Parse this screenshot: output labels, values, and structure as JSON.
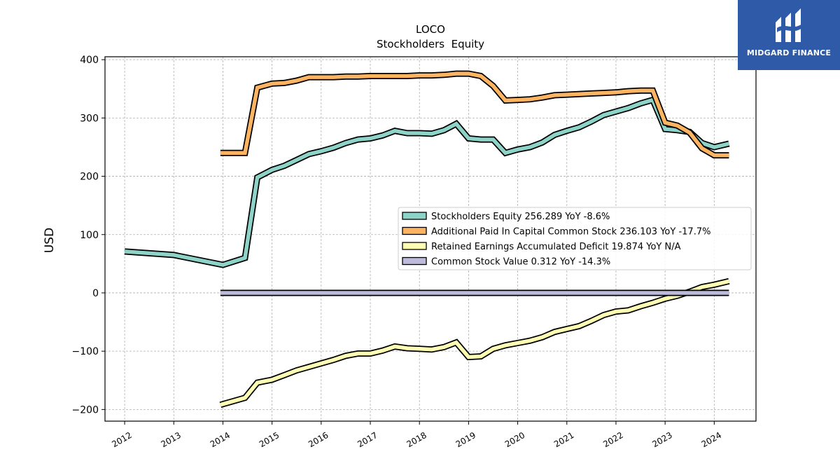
{
  "chart_data": {
    "type": "line",
    "title": "LOCO",
    "subtitle": "Stockholders  Equity",
    "ylabel": "USD",
    "xlabel": "",
    "ylim": [
      -220,
      405
    ],
    "xlim": [
      2011.6,
      2024.85
    ],
    "yticks": [
      -200,
      -100,
      0,
      100,
      200,
      300,
      400
    ],
    "xticks": [
      2012,
      2013,
      2014,
      2015,
      2016,
      2017,
      2018,
      2019,
      2020,
      2021,
      2022,
      2023,
      2024
    ],
    "grid": true,
    "legend_position": "center-right",
    "series": [
      {
        "name": "Stockholders Equity",
        "legend_label": "Stockholders Equity  256.289 YoY -8.6%",
        "color": "#8dd3c7",
        "points": [
          [
            2012.0,
            71
          ],
          [
            2013.0,
            65
          ],
          [
            2014.0,
            48
          ],
          [
            2014.45,
            60
          ],
          [
            2014.7,
            198
          ],
          [
            2015.0,
            211
          ],
          [
            2015.25,
            218
          ],
          [
            2015.5,
            228
          ],
          [
            2015.75,
            238
          ],
          [
            2016.0,
            243
          ],
          [
            2016.25,
            249
          ],
          [
            2016.5,
            257
          ],
          [
            2016.75,
            263
          ],
          [
            2017.0,
            265
          ],
          [
            2017.25,
            270
          ],
          [
            2017.5,
            278
          ],
          [
            2017.75,
            274
          ],
          [
            2018.0,
            274
          ],
          [
            2018.25,
            273
          ],
          [
            2018.5,
            279
          ],
          [
            2018.75,
            290
          ],
          [
            2019.0,
            265
          ],
          [
            2019.25,
            263
          ],
          [
            2019.5,
            263
          ],
          [
            2019.75,
            240
          ],
          [
            2020.0,
            246
          ],
          [
            2020.25,
            250
          ],
          [
            2020.5,
            258
          ],
          [
            2020.75,
            271
          ],
          [
            2021.0,
            278
          ],
          [
            2021.25,
            284
          ],
          [
            2021.5,
            294
          ],
          [
            2021.75,
            305
          ],
          [
            2022.0,
            311
          ],
          [
            2022.25,
            317
          ],
          [
            2022.5,
            325
          ],
          [
            2022.75,
            331
          ],
          [
            2023.0,
            281
          ],
          [
            2023.25,
            279
          ],
          [
            2023.5,
            276
          ],
          [
            2023.75,
            257
          ],
          [
            2024.0,
            250
          ],
          [
            2024.3,
            256
          ]
        ]
      },
      {
        "name": "Additional Paid In Capital Common Stock",
        "legend_label": "Additional Paid In Capital Common Stock  236.103 YoY -17.7%",
        "color": "#fdb462",
        "points": [
          [
            2013.95,
            240
          ],
          [
            2014.45,
            240
          ],
          [
            2014.7,
            352
          ],
          [
            2015.0,
            359
          ],
          [
            2015.25,
            360
          ],
          [
            2015.5,
            364
          ],
          [
            2015.75,
            370
          ],
          [
            2016.0,
            370
          ],
          [
            2016.25,
            370
          ],
          [
            2016.5,
            371
          ],
          [
            2016.75,
            371
          ],
          [
            2017.0,
            372
          ],
          [
            2017.25,
            372
          ],
          [
            2017.5,
            372
          ],
          [
            2017.75,
            372
          ],
          [
            2018.0,
            373
          ],
          [
            2018.25,
            373
          ],
          [
            2018.5,
            374
          ],
          [
            2018.75,
            376
          ],
          [
            2019.0,
            376
          ],
          [
            2019.25,
            372
          ],
          [
            2019.5,
            355
          ],
          [
            2019.75,
            330
          ],
          [
            2020.0,
            331
          ],
          [
            2020.25,
            332
          ],
          [
            2020.5,
            335
          ],
          [
            2020.75,
            339
          ],
          [
            2021.0,
            340
          ],
          [
            2021.25,
            341
          ],
          [
            2021.5,
            342
          ],
          [
            2021.75,
            343
          ],
          [
            2022.0,
            344
          ],
          [
            2022.25,
            346
          ],
          [
            2022.5,
            347
          ],
          [
            2022.75,
            347
          ],
          [
            2023.0,
            292
          ],
          [
            2023.25,
            287
          ],
          [
            2023.5,
            275
          ],
          [
            2023.75,
            248
          ],
          [
            2024.0,
            236
          ],
          [
            2024.3,
            236
          ]
        ]
      },
      {
        "name": "Retained Earnings Accumulated Deficit",
        "legend_label": "Retained Earnings Accumulated Deficit  19.874 YoY N/A",
        "color": "#ffffb3",
        "points": [
          [
            2013.95,
            -192
          ],
          [
            2014.45,
            -180
          ],
          [
            2014.7,
            -154
          ],
          [
            2015.0,
            -149
          ],
          [
            2015.25,
            -141
          ],
          [
            2015.5,
            -133
          ],
          [
            2015.75,
            -127
          ],
          [
            2016.0,
            -121
          ],
          [
            2016.25,
            -115
          ],
          [
            2016.5,
            -108
          ],
          [
            2016.75,
            -104
          ],
          [
            2017.0,
            -104
          ],
          [
            2017.25,
            -99
          ],
          [
            2017.5,
            -92
          ],
          [
            2017.75,
            -95
          ],
          [
            2018.0,
            -96
          ],
          [
            2018.25,
            -97
          ],
          [
            2018.5,
            -93
          ],
          [
            2018.75,
            -85
          ],
          [
            2019.0,
            -110
          ],
          [
            2019.25,
            -109
          ],
          [
            2019.5,
            -96
          ],
          [
            2019.75,
            -90
          ],
          [
            2020.0,
            -86
          ],
          [
            2020.25,
            -82
          ],
          [
            2020.5,
            -76
          ],
          [
            2020.75,
            -67
          ],
          [
            2021.0,
            -62
          ],
          [
            2021.25,
            -57
          ],
          [
            2021.5,
            -48
          ],
          [
            2021.75,
            -38
          ],
          [
            2022.0,
            -32
          ],
          [
            2022.25,
            -30
          ],
          [
            2022.5,
            -23
          ],
          [
            2022.75,
            -17
          ],
          [
            2023.0,
            -10
          ],
          [
            2023.25,
            -5
          ],
          [
            2023.5,
            2
          ],
          [
            2023.75,
            10
          ],
          [
            2024.0,
            14
          ],
          [
            2024.3,
            20
          ]
        ]
      },
      {
        "name": "Common Stock Value",
        "legend_label": "Common Stock Value  0.312 YoY -14.3%",
        "color": "#bebada",
        "points": [
          [
            2013.95,
            0
          ],
          [
            2024.3,
            0
          ]
        ]
      }
    ]
  },
  "logo": {
    "brand": "MIDGARD FINANCE",
    "background": "#2e5aa8",
    "icon": "midgard-logo-icon"
  }
}
